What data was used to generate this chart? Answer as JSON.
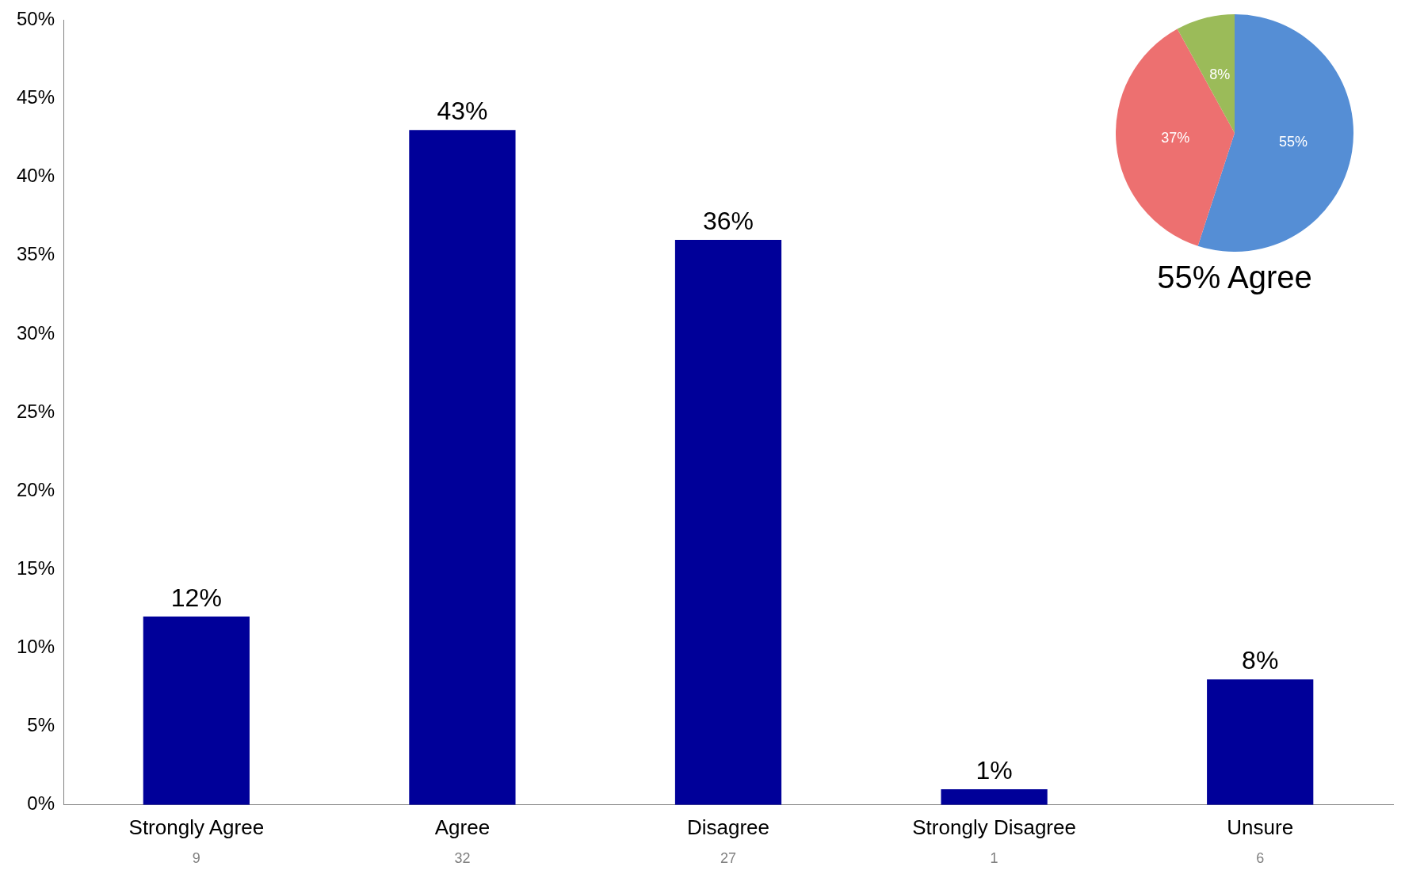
{
  "chart_data": [
    {
      "type": "bar",
      "categories": [
        "Strongly Agree",
        "Agree",
        "Disagree",
        "Strongly Disagree",
        "Unsure"
      ],
      "values": [
        12,
        43,
        36,
        1,
        8
      ],
      "color": "#000099",
      "value_labels": [
        "12%",
        "43%",
        "36%",
        "1%",
        "8%"
      ],
      "ylim": [
        0,
        50
      ],
      "yticks": [
        {
          "value": 0,
          "label": "0%"
        },
        {
          "value": 5,
          "label": "5%"
        },
        {
          "value": 10,
          "label": "10%"
        },
        {
          "value": 15,
          "label": "15%"
        },
        {
          "value": 20,
          "label": "20%"
        },
        {
          "value": 25,
          "label": "25%"
        },
        {
          "value": 30,
          "label": "30%"
        },
        {
          "value": 35,
          "label": "35%"
        },
        {
          "value": 40,
          "label": "40%"
        },
        {
          "value": 45,
          "label": "45%"
        },
        {
          "value": 50,
          "label": "50%"
        }
      ],
      "grid": false,
      "legend": false,
      "annotations": [
        "9",
        "32",
        "27",
        "1",
        "6"
      ]
    },
    {
      "type": "pie",
      "title": "55% Agree",
      "categories": [
        null,
        null,
        null
      ],
      "values": [
        55,
        37,
        8
      ],
      "colors": [
        "#558ed5",
        "#ed7070",
        "#9bbb59"
      ],
      "value_labels": [
        "55%",
        "37%",
        "8%"
      ],
      "legend": false
    }
  ]
}
